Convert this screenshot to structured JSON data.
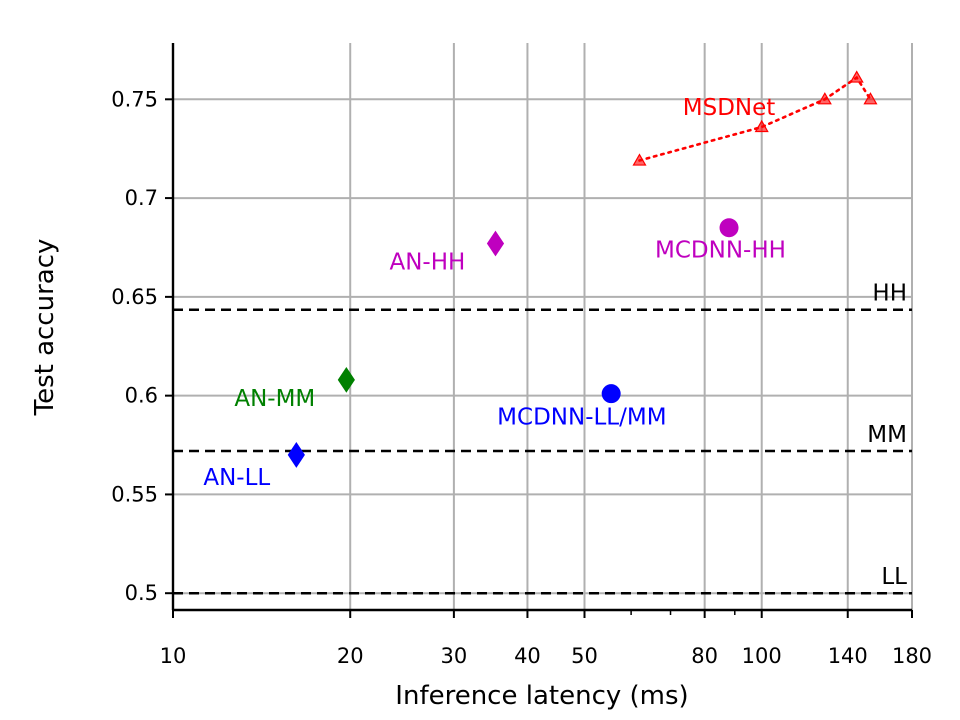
{
  "chart_data": {
    "type": "scatter",
    "xscale": "log",
    "xlim": [
      10,
      180
    ],
    "ylim": [
      0.4915,
      0.7785
    ],
    "grid": true,
    "xlabel": "Inference latency (ms)",
    "ylabel": "Test accuracy",
    "x_ticks": [
      {
        "value": 10,
        "label": "10"
      },
      {
        "value": 20,
        "label": "20"
      },
      {
        "value": 30,
        "label": "30"
      },
      {
        "value": 40,
        "label": "40"
      },
      {
        "value": 50,
        "label": "50"
      },
      {
        "value": 80,
        "label": "80"
      },
      {
        "value": 100,
        "label": "100"
      },
      {
        "value": 140,
        "label": "140"
      },
      {
        "value": 180,
        "label": "180"
      }
    ],
    "x_minor_ticks": [
      60,
      70,
      90
    ],
    "y_ticks": [
      {
        "value": 0.5,
        "label": "0.5"
      },
      {
        "value": 0.55,
        "label": "0.55"
      },
      {
        "value": 0.6,
        "label": "0.6"
      },
      {
        "value": 0.65,
        "label": "0.65"
      },
      {
        "value": 0.7,
        "label": "0.7"
      },
      {
        "value": 0.75,
        "label": "0.75"
      }
    ],
    "reference_lines": [
      {
        "name": "HH",
        "y": 0.6435,
        "label": "HH"
      },
      {
        "name": "MM",
        "y": 0.572,
        "label": "MM"
      },
      {
        "name": "LL",
        "y": 0.5,
        "label": "LL"
      }
    ],
    "points": [
      {
        "name": "AN-LL",
        "x": 16.2,
        "y": 0.57,
        "marker": "diamond",
        "color": "#0000ff",
        "label": "AN-LL",
        "label_dx": -93,
        "label_dy": 30
      },
      {
        "name": "AN-MM",
        "x": 19.7,
        "y": 0.608,
        "marker": "diamond",
        "color": "#008000",
        "label": "AN-MM",
        "label_dx": -112,
        "label_dy": 26
      },
      {
        "name": "AN-HH",
        "x": 35.3,
        "y": 0.677,
        "marker": "diamond",
        "color": "#bf00bf",
        "label": "AN-HH",
        "label_dx": -106,
        "label_dy": 26
      },
      {
        "name": "MCDNN-LL/MM",
        "x": 55.5,
        "y": 0.601,
        "marker": "circle",
        "color": "#0000ff",
        "label": "MCDNN-LL/MM",
        "label_dx": -114,
        "label_dy": 31
      },
      {
        "name": "MCDNN-HH",
        "x": 88,
        "y": 0.685,
        "marker": "circle",
        "color": "#bf00bf",
        "label": "MCDNN-HH",
        "label_dx": -74,
        "label_dy": 30
      }
    ],
    "series": [
      {
        "name": "MSDNet",
        "label": "MSDNet",
        "color": "#ff0000",
        "marker": "triangle",
        "linestyle": "dotted",
        "x": [
          62,
          100,
          128,
          145,
          153
        ],
        "y": [
          0.719,
          0.736,
          0.75,
          0.761,
          0.75
        ]
      }
    ],
    "msdnet_label_anchor": {
      "x": 88,
      "y": 0.746
    }
  }
}
